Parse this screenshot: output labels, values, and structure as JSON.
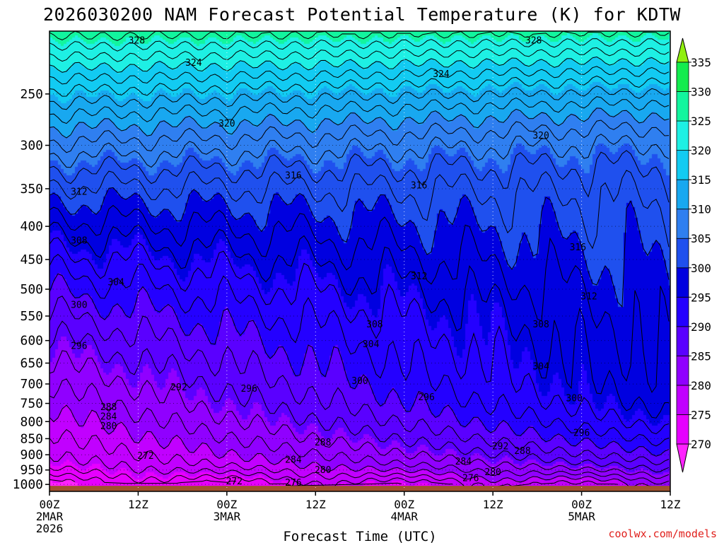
{
  "chart_data": {
    "type": "heatmap",
    "title": "2026030200 NAM Forecast Potential Temperature (K) for KDTW",
    "xlabel": "Forecast Time (UTC)",
    "ylabel": "",
    "x_range_hours": [
      0,
      84
    ],
    "x_ticks": [
      {
        "hour": 0,
        "line1": "00Z",
        "line2": "2MAR",
        "line3": "2026"
      },
      {
        "hour": 12,
        "line1": "12Z",
        "line2": "",
        "line3": ""
      },
      {
        "hour": 24,
        "line1": "00Z",
        "line2": "3MAR",
        "line3": ""
      },
      {
        "hour": 36,
        "line1": "12Z",
        "line2": "",
        "line3": ""
      },
      {
        "hour": 48,
        "line1": "00Z",
        "line2": "4MAR",
        "line3": ""
      },
      {
        "hour": 60,
        "line1": "12Z",
        "line2": "",
        "line3": ""
      },
      {
        "hour": 72,
        "line1": "00Z",
        "line2": "5MAR",
        "line3": ""
      },
      {
        "hour": 84,
        "line1": "12Z",
        "line2": "",
        "line3": ""
      }
    ],
    "y_axis": "pressure (hPa), log scale, inverted",
    "y_range": [
      1025,
      200
    ],
    "y_ticks": [
      "250",
      "300",
      "350",
      "400",
      "450",
      "500",
      "550",
      "600",
      "650",
      "700",
      "750",
      "800",
      "850",
      "900",
      "950",
      "1000"
    ],
    "colorbar": {
      "levels": [
        270,
        275,
        280,
        285,
        290,
        295,
        300,
        305,
        310,
        315,
        320,
        325,
        330,
        335
      ],
      "labels": [
        "270",
        "275",
        "280",
        "285",
        "290",
        "295",
        "300",
        "305",
        "310",
        "315",
        "320",
        "325",
        "330",
        "335"
      ],
      "colors": [
        "#ff22ff",
        "#e600ff",
        "#c100ff",
        "#9000ff",
        "#5a00ff",
        "#2400ff",
        "#0000e0",
        "#1f50ee",
        "#2f7ff0",
        "#18a8f0",
        "#12cbf2",
        "#1ef0e4",
        "#12f59e",
        "#14ec4e",
        "#90f010"
      ]
    },
    "contour_labels": [
      {
        "text": "328",
        "hour": 11.8,
        "p": 207
      },
      {
        "text": "328",
        "hour": 65.5,
        "p": 207
      },
      {
        "text": "324",
        "hour": 19.5,
        "p": 224
      },
      {
        "text": "324",
        "hour": 53,
        "p": 233
      },
      {
        "text": "320",
        "hour": 24,
        "p": 278
      },
      {
        "text": "320",
        "hour": 66.5,
        "p": 290
      },
      {
        "text": "316",
        "hour": 33,
        "p": 334
      },
      {
        "text": "316",
        "hour": 50,
        "p": 346
      },
      {
        "text": "316",
        "hour": 71.5,
        "p": 431
      },
      {
        "text": "312",
        "hour": 4,
        "p": 354
      },
      {
        "text": "312",
        "hour": 50,
        "p": 478
      },
      {
        "text": "312",
        "hour": 73,
        "p": 513
      },
      {
        "text": "308",
        "hour": 4,
        "p": 421
      },
      {
        "text": "308",
        "hour": 44,
        "p": 567
      },
      {
        "text": "308",
        "hour": 66.5,
        "p": 567
      },
      {
        "text": "304",
        "hour": 9,
        "p": 488
      },
      {
        "text": "304",
        "hour": 43.5,
        "p": 608
      },
      {
        "text": "304",
        "hour": 66.5,
        "p": 658
      },
      {
        "text": "300",
        "hour": 4,
        "p": 529
      },
      {
        "text": "300",
        "hour": 42,
        "p": 693
      },
      {
        "text": "300",
        "hour": 71,
        "p": 737
      },
      {
        "text": "296",
        "hour": 4,
        "p": 612
      },
      {
        "text": "296",
        "hour": 27,
        "p": 712
      },
      {
        "text": "296",
        "hour": 51,
        "p": 734
      },
      {
        "text": "296",
        "hour": 72,
        "p": 833
      },
      {
        "text": "292",
        "hour": 17.5,
        "p": 709
      },
      {
        "text": "292",
        "hour": 61,
        "p": 874
      },
      {
        "text": "288",
        "hour": 8,
        "p": 760
      },
      {
        "text": "288",
        "hour": 37,
        "p": 862
      },
      {
        "text": "288",
        "hour": 64,
        "p": 888
      },
      {
        "text": "284",
        "hour": 8,
        "p": 787
      },
      {
        "text": "284",
        "hour": 33,
        "p": 917
      },
      {
        "text": "284",
        "hour": 56,
        "p": 922
      },
      {
        "text": "280",
        "hour": 8,
        "p": 814
      },
      {
        "text": "280",
        "hour": 37,
        "p": 951
      },
      {
        "text": "280",
        "hour": 60,
        "p": 958
      },
      {
        "text": "276",
        "hour": 33,
        "p": 995
      },
      {
        "text": "276",
        "hour": 57,
        "p": 978
      },
      {
        "text": "272",
        "hour": 13,
        "p": 904
      },
      {
        "text": "272",
        "hour": 25,
        "p": 990
      }
    ]
  },
  "credit": "coolwx.com/models"
}
